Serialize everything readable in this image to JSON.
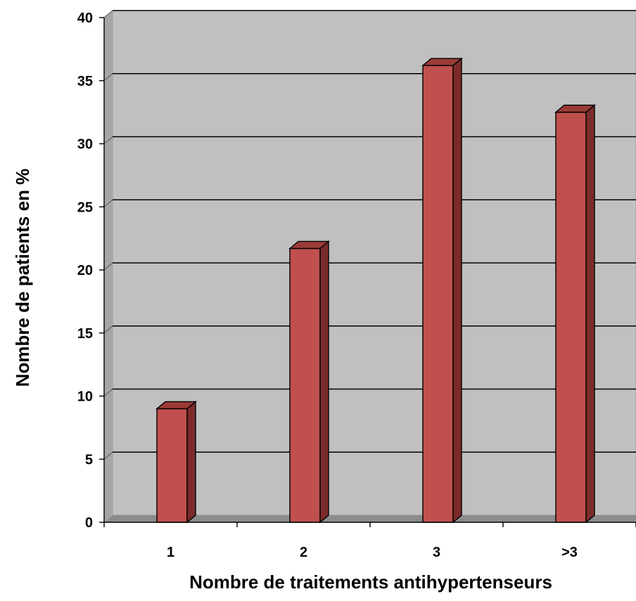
{
  "chart_data": {
    "type": "bar",
    "categories": [
      "1",
      "2",
      "3",
      ">3"
    ],
    "values": [
      9,
      21.7,
      36.2,
      32.5
    ],
    "xlabel": "Nombre de traitements antihypertenseurs",
    "ylabel": "Nombre de patients en  %",
    "ylim": [
      0,
      40
    ],
    "yticks": [
      0,
      5,
      10,
      15,
      20,
      25,
      30,
      35,
      40
    ],
    "grid": true,
    "legend": "none",
    "colors": {
      "bar_front": "#c0504d",
      "bar_side": "#7b2c2a",
      "bar_top": "#9b3b38",
      "plot_wall": "#c0c0c0",
      "plot_floor": "#8c8c8c",
      "gridline": "#000000"
    }
  }
}
